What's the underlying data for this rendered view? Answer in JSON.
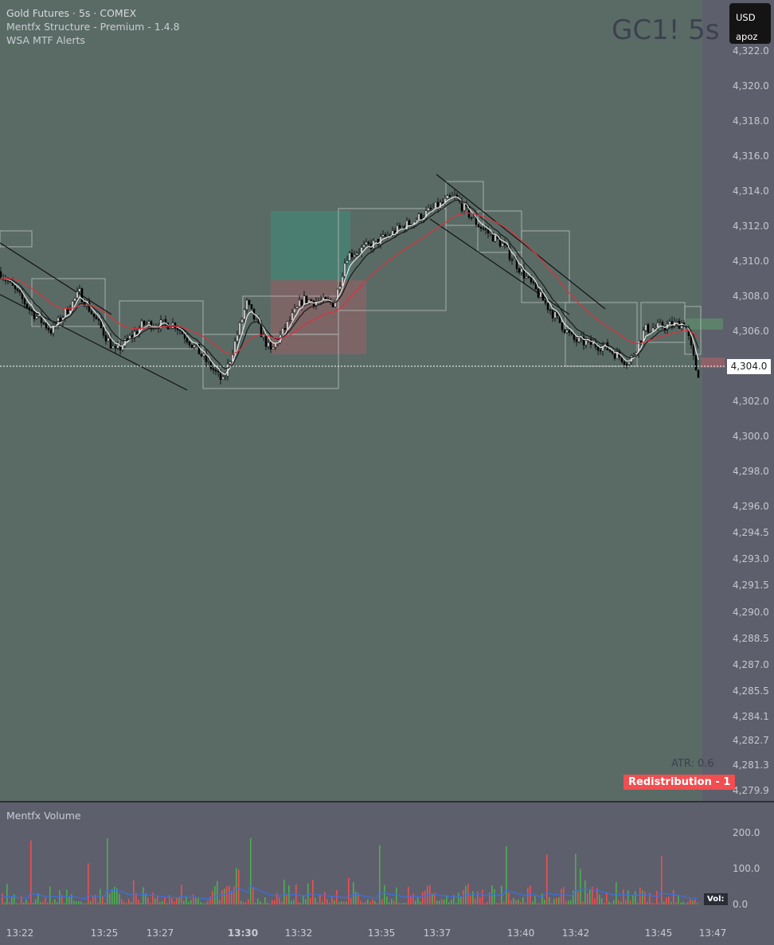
{
  "header": {
    "symbol_title": "Gold Futures · 5s · COMEX",
    "indicators": [
      "Mentfx Structure - Premium - 1.4.8",
      "WSA MTF Alerts"
    ],
    "watermark": "GC1! 5s",
    "currency": "USD",
    "account": "apoz"
  },
  "colors": {
    "chart_bg": "#5a6b66",
    "axis_bg": "#5e5f6c",
    "up_volume": "#4caf50",
    "down_volume": "#f04e50",
    "volume_ma": "#3b6fe0",
    "ema_fast": "#e6e6e6",
    "ema_mid": "#1a1a1a",
    "ema_slow": "#e0303a"
  },
  "overlays": {
    "atr": "ATR: 0.6",
    "signal": "Redistribution - 1",
    "current_price": "4,304.0"
  },
  "volume_pane": {
    "title": "Mentfx Volume",
    "tag": "Vol:",
    "ticks": [
      "200.0",
      "100.0",
      "0.0"
    ]
  },
  "chart_data": {
    "type": "candlestick",
    "price_ticks": [
      "4,322.0",
      "4,320.0",
      "4,318.0",
      "4,316.0",
      "4,314.0",
      "4,312.0",
      "4,310.0",
      "4,308.0",
      "4,306.0",
      "4,302.0",
      "4,300.0",
      "4,298.0",
      "4,296.0",
      "4,294.5",
      "4,293.0",
      "4,291.5",
      "4,290.0",
      "4,288.5",
      "4,287.0",
      "4,285.5",
      "4,284.1",
      "4,282.7",
      "4,281.3",
      "4,279.9"
    ],
    "time_ticks": [
      "13:22",
      "13:25",
      "13:27",
      "13:30",
      "13:32",
      "13:35",
      "13:37",
      "13:40",
      "13:42",
      "13:45",
      "13:47"
    ],
    "price_path": [
      [
        "13:21:17",
        4309.4
      ],
      [
        "13:22:26",
        4307.1
      ],
      [
        "13:23:09",
        4306.0
      ],
      [
        "13:24:09",
        4308.2
      ],
      [
        "13:25:27",
        4304.8
      ],
      [
        "13:26:27",
        4306.4
      ],
      [
        "13:27:36",
        4306.4
      ],
      [
        "13:28:28",
        4304.8
      ],
      [
        "13:29:20",
        4303.1
      ],
      [
        "13:30:11",
        4307.6
      ],
      [
        "13:31:03",
        4304.8
      ],
      [
        "13:32:12",
        4307.8
      ],
      [
        "13:33:21",
        4307.6
      ],
      [
        "13:33:47",
        4310.3
      ],
      [
        "13:34:47",
        4311.0
      ],
      [
        "13:36:31",
        4312.6
      ],
      [
        "13:37:40",
        4313.7
      ],
      [
        "13:38:31",
        4312.1
      ],
      [
        "13:39:23",
        4311.0
      ],
      [
        "13:40:15",
        4309.1
      ],
      [
        "13:41:06",
        4307.3
      ],
      [
        "13:41:58",
        4305.5
      ],
      [
        "13:43:07",
        4305.1
      ],
      [
        "13:43:59",
        4304.2
      ],
      [
        "13:44:33",
        4306.1
      ],
      [
        "13:46:00",
        4306.5
      ],
      [
        "13:46:26",
        4303.6
      ]
    ],
    "volume_ylim": [
      0,
      250
    ]
  }
}
